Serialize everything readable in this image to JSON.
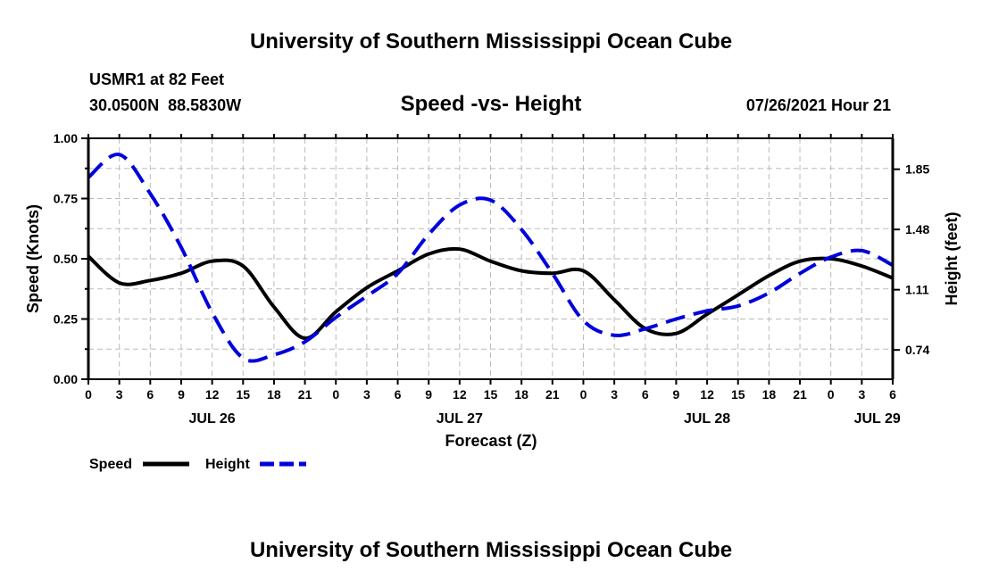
{
  "header": {
    "title": "University of Southern Mississippi Ocean Cube",
    "station": "USMR1 at 82 Feet",
    "coords": "30.0500N  88.5830W",
    "chart_title": "Speed -vs- Height",
    "datetime": "07/26/2021 Hour 21"
  },
  "footer": {
    "title": "University of Southern Mississippi Ocean Cube"
  },
  "chart_data": {
    "type": "line",
    "title": "Speed -vs- Height",
    "xlabel": "Forecast (Z)",
    "ylabel": "Speed (Knots)",
    "y2label": "Height (feet)",
    "x_hours": [
      0,
      3,
      6,
      9,
      12,
      15,
      18,
      21,
      24,
      27,
      30,
      33,
      36,
      39,
      42,
      45,
      48,
      51,
      54,
      57,
      60,
      63,
      66,
      69,
      72,
      75,
      78
    ],
    "x_tick_labels": [
      "0",
      "3",
      "6",
      "9",
      "12",
      "15",
      "18",
      "21",
      "0",
      "3",
      "6",
      "9",
      "12",
      "15",
      "18",
      "21",
      "0",
      "3",
      "6",
      "9",
      "12",
      "15",
      "18",
      "21",
      "0",
      "3",
      "6"
    ],
    "date_labels": [
      {
        "label": "JUL 26",
        "hour": 12
      },
      {
        "label": "JUL 27",
        "hour": 36
      },
      {
        "label": "JUL 28",
        "hour": 60
      },
      {
        "label": "JUL 29",
        "hour": 76.5
      }
    ],
    "ylim": [
      0,
      1.0
    ],
    "y_ticks": [
      "0.00",
      "0.25",
      "0.50",
      "0.75",
      "1.00"
    ],
    "y2lim": [
      0.56,
      2.04
    ],
    "y2_ticks": [
      "0.74",
      "1.11",
      "1.48",
      "1.85"
    ],
    "grid": true,
    "legend_placement": "bottom-left",
    "series": [
      {
        "name": "Speed",
        "axis": "left",
        "color": "#000000",
        "style": "solid",
        "values": [
          0.51,
          0.4,
          0.41,
          0.44,
          0.49,
          0.47,
          0.3,
          0.17,
          0.28,
          0.38,
          0.45,
          0.52,
          0.54,
          0.49,
          0.45,
          0.44,
          0.45,
          0.33,
          0.21,
          0.19,
          0.27,
          0.35,
          0.43,
          0.49,
          0.5,
          0.47,
          0.42
        ]
      },
      {
        "name": "Height",
        "axis": "right",
        "color": "#0000dd",
        "style": "dashed",
        "values": [
          1.8,
          1.94,
          1.7,
          1.37,
          0.97,
          0.69,
          0.71,
          0.79,
          0.94,
          1.07,
          1.21,
          1.45,
          1.63,
          1.66,
          1.48,
          1.21,
          0.92,
          0.83,
          0.87,
          0.93,
          0.98,
          1.01,
          1.09,
          1.21,
          1.31,
          1.35,
          1.26
        ]
      }
    ]
  }
}
